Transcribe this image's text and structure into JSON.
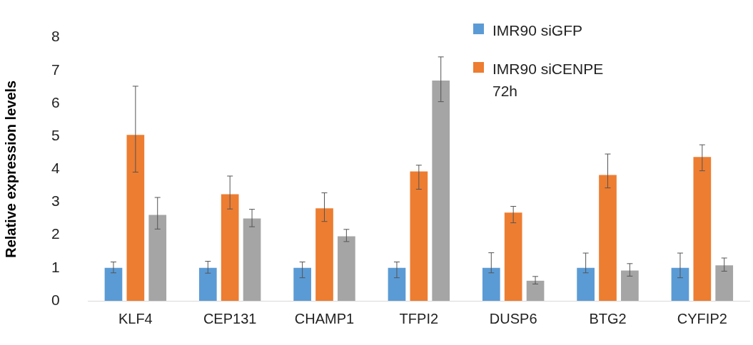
{
  "chart_data": {
    "type": "bar",
    "ylabel": "Relative expression levels",
    "categories": [
      "KLF4",
      "CEP131",
      "CHAMP1",
      "TFPI2",
      "DUSP6",
      "BTG2",
      "CYFIP2"
    ],
    "series": [
      {
        "name": "IMR90 siGFP",
        "color": "#5b9bd5",
        "values": [
          1.0,
          1.0,
          1.0,
          1.0,
          1.0,
          1.0,
          1.0
        ],
        "errors": [
          [
            0.85,
            1.18
          ],
          [
            0.84,
            1.2
          ],
          [
            0.7,
            1.18
          ],
          [
            0.7,
            1.18
          ],
          [
            0.85,
            1.46
          ],
          [
            0.85,
            1.45
          ],
          [
            0.7,
            1.45
          ]
        ]
      },
      {
        "name": "IMR90 siCENPE 72h",
        "color": "#ed7d31",
        "values": [
          5.04,
          3.24,
          2.81,
          3.93,
          2.68,
          3.82,
          4.37
        ],
        "errors": [
          [
            3.91,
            6.52
          ],
          [
            2.79,
            3.79
          ],
          [
            2.41,
            3.28
          ],
          [
            3.39,
            4.12
          ],
          [
            2.37,
            2.87
          ],
          [
            3.43,
            4.46
          ],
          [
            3.95,
            4.74
          ]
        ]
      },
      {
        "color": "#a5a5a5",
        "values": [
          2.61,
          2.5,
          1.96,
          6.69,
          0.61,
          0.92,
          1.08
        ],
        "errors": [
          [
            2.18,
            3.14
          ],
          [
            2.25,
            2.78
          ],
          [
            1.8,
            2.17
          ],
          [
            6.05,
            7.41
          ],
          [
            0.51,
            0.74
          ],
          [
            0.75,
            1.13
          ],
          [
            0.9,
            1.3
          ]
        ]
      }
    ],
    "ylim": [
      0,
      8
    ],
    "yticks": [
      0,
      1,
      2,
      3,
      4,
      5,
      6,
      7,
      8
    ],
    "grid": false,
    "legend": "top right"
  }
}
